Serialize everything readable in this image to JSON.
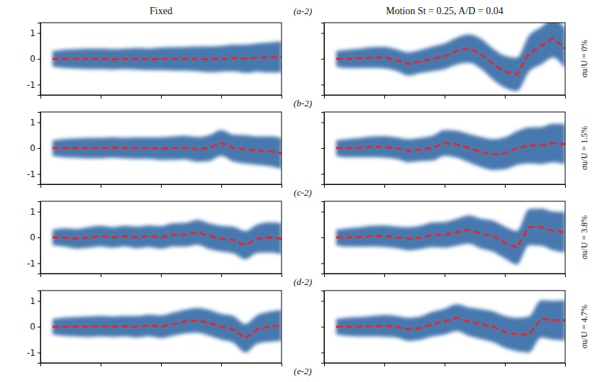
{
  "column_titles": [
    "Fixed",
    "Motion St = 0.25, A/D = 0.04"
  ],
  "panel_labels": [
    "(a-2)",
    "(b-2)",
    "(c-2)",
    "(d-2)",
    "(e-2)"
  ],
  "row_labels": [
    "σu/U = 0%",
    "σu/U = 1.5%",
    "σu/U = 3.8%",
    "σu/U = 4.7%"
  ],
  "chart_data": [
    {
      "type": "line",
      "xlim": [
        0,
        4
      ],
      "ylim": [
        -1.4,
        1.4
      ],
      "xticks": [
        1,
        2,
        3
      ],
      "yticks": [
        -1,
        0,
        1
      ],
      "tick_labels": "y",
      "x": [
        0.2,
        0.4,
        0.6,
        0.8,
        1.0,
        1.2,
        1.4,
        1.6,
        1.8,
        2.0,
        2.2,
        2.4,
        2.6,
        2.8,
        3.0,
        3.2,
        3.4,
        3.6,
        3.8,
        4.0
      ],
      "series": [
        {
          "color": "#e8262a",
          "line_style": "dashed",
          "values": [
            0,
            0,
            0,
            0,
            0,
            -0.02,
            0,
            0,
            -0.02,
            0,
            0,
            0,
            0,
            -0.02,
            0,
            0.03,
            0,
            0.05,
            0.05,
            0.08
          ],
          "wake_halfwidth": [
            0.3,
            0.36,
            0.38,
            0.4,
            0.4,
            0.4,
            0.4,
            0.42,
            0.42,
            0.44,
            0.45,
            0.46,
            0.48,
            0.5,
            0.5,
            0.52,
            0.55,
            0.55,
            0.58,
            0.6
          ]
        }
      ]
    },
    {
      "type": "line",
      "xlim": [
        0,
        4
      ],
      "ylim": [
        -1.4,
        1.4
      ],
      "xticks": [
        1,
        2,
        3
      ],
      "yticks": [
        -1,
        0,
        1
      ],
      "tick_labels": false,
      "x": [
        0.2,
        0.4,
        0.6,
        0.8,
        1.0,
        1.2,
        1.4,
        1.6,
        1.8,
        2.0,
        2.2,
        2.4,
        2.6,
        2.8,
        3.0,
        3.2,
        3.4,
        3.6,
        3.8,
        4.0
      ],
      "series": [
        {
          "color": "#e8262a",
          "line_style": "dashed",
          "values": [
            0,
            0,
            0.02,
            0.05,
            0.05,
            -0.05,
            -0.2,
            -0.1,
            0,
            0.1,
            0.3,
            0.4,
            0.2,
            -0.2,
            -0.5,
            -0.6,
            0.2,
            0.5,
            0.8,
            0.4
          ],
          "wake_halfwidth": [
            0.3,
            0.36,
            0.38,
            0.4,
            0.42,
            0.42,
            0.45,
            0.45,
            0.48,
            0.5,
            0.52,
            0.55,
            0.58,
            0.6,
            0.62,
            0.65,
            0.7,
            0.72,
            0.75,
            0.78
          ]
        }
      ]
    },
    {
      "type": "line",
      "xlim": [
        0,
        4
      ],
      "ylim": [
        -1.4,
        1.4
      ],
      "xticks": [
        1,
        2,
        3
      ],
      "yticks": [
        -1,
        0,
        1
      ],
      "tick_labels": "y",
      "x": [
        0.2,
        0.4,
        0.6,
        0.8,
        1.0,
        1.2,
        1.4,
        1.6,
        1.8,
        2.0,
        2.2,
        2.4,
        2.6,
        2.8,
        3.0,
        3.2,
        3.4,
        3.6,
        3.8,
        4.0
      ],
      "series": [
        {
          "color": "#e8262a",
          "line_style": "dashed",
          "values": [
            0,
            0,
            0,
            0,
            0,
            0.02,
            0,
            0,
            0,
            -0.02,
            0,
            0.02,
            -0.05,
            0,
            0.2,
            0,
            -0.05,
            -0.1,
            -0.12,
            -0.2
          ],
          "wake_halfwidth": [
            0.3,
            0.36,
            0.38,
            0.4,
            0.4,
            0.4,
            0.4,
            0.42,
            0.42,
            0.44,
            0.45,
            0.46,
            0.48,
            0.5,
            0.5,
            0.52,
            0.55,
            0.55,
            0.58,
            0.6
          ]
        }
      ]
    },
    {
      "type": "line",
      "xlim": [
        0,
        4
      ],
      "ylim": [
        -1.4,
        1.4
      ],
      "xticks": [
        1,
        2,
        3
      ],
      "yticks": [
        -1,
        0,
        1
      ],
      "tick_labels": false,
      "x": [
        0.2,
        0.4,
        0.6,
        0.8,
        1.0,
        1.2,
        1.4,
        1.6,
        1.8,
        2.0,
        2.2,
        2.4,
        2.6,
        2.8,
        3.0,
        3.2,
        3.4,
        3.6,
        3.8,
        4.0
      ],
      "series": [
        {
          "color": "#e8262a",
          "line_style": "dashed",
          "values": [
            0,
            0,
            0.02,
            0.05,
            0.05,
            0,
            -0.1,
            -0.05,
            0,
            0.2,
            0.15,
            0,
            -0.15,
            -0.25,
            -0.2,
            0,
            0.1,
            0.1,
            0.2,
            0.15
          ],
          "wake_halfwidth": [
            0.3,
            0.36,
            0.38,
            0.4,
            0.42,
            0.42,
            0.45,
            0.45,
            0.48,
            0.5,
            0.52,
            0.55,
            0.58,
            0.6,
            0.62,
            0.65,
            0.7,
            0.72,
            0.75,
            0.78
          ]
        }
      ]
    },
    {
      "type": "line",
      "xlim": [
        0,
        4
      ],
      "ylim": [
        -1.4,
        1.4
      ],
      "xticks": [
        1,
        2,
        3
      ],
      "yticks": [
        -1,
        0,
        1
      ],
      "tick_labels": "y",
      "x": [
        0.2,
        0.4,
        0.6,
        0.8,
        1.0,
        1.2,
        1.4,
        1.6,
        1.8,
        2.0,
        2.2,
        2.4,
        2.6,
        2.8,
        3.0,
        3.2,
        3.4,
        3.6,
        3.8,
        4.0
      ],
      "series": [
        {
          "color": "#e8262a",
          "line_style": "dashed",
          "values": [
            0,
            0,
            -0.05,
            0,
            0.05,
            0,
            0.05,
            0,
            0.05,
            0,
            0.1,
            0.1,
            0.2,
            0.05,
            -0.05,
            -0.1,
            -0.3,
            -0.05,
            0,
            -0.05
          ],
          "wake_halfwidth": [
            0.3,
            0.36,
            0.38,
            0.4,
            0.4,
            0.4,
            0.4,
            0.42,
            0.42,
            0.44,
            0.45,
            0.46,
            0.48,
            0.5,
            0.5,
            0.52,
            0.55,
            0.55,
            0.58,
            0.6
          ]
        }
      ]
    },
    {
      "type": "line",
      "xlim": [
        0,
        4
      ],
      "ylim": [
        -1.4,
        1.4
      ],
      "xticks": [
        1,
        2,
        3
      ],
      "yticks": [
        -1,
        0,
        1
      ],
      "tick_labels": false,
      "x": [
        0.2,
        0.4,
        0.6,
        0.8,
        1.0,
        1.2,
        1.4,
        1.6,
        1.8,
        2.0,
        2.2,
        2.4,
        2.6,
        2.8,
        3.0,
        3.2,
        3.4,
        3.6,
        3.8,
        4.0
      ],
      "series": [
        {
          "color": "#e8262a",
          "line_style": "dashed",
          "values": [
            0,
            0,
            0.02,
            0.05,
            0.05,
            0,
            -0.05,
            0,
            0.1,
            0.1,
            0.2,
            0.3,
            0.15,
            0.05,
            -0.2,
            -0.4,
            0.4,
            0.4,
            0.25,
            0.2
          ],
          "wake_halfwidth": [
            0.3,
            0.36,
            0.38,
            0.4,
            0.42,
            0.42,
            0.45,
            0.45,
            0.48,
            0.5,
            0.52,
            0.55,
            0.58,
            0.6,
            0.62,
            0.65,
            0.7,
            0.72,
            0.75,
            0.78
          ]
        }
      ]
    },
    {
      "type": "line",
      "xlim": [
        0,
        4
      ],
      "ylim": [
        -1.4,
        1.4
      ],
      "xticks": [
        1,
        2,
        3
      ],
      "yticks": [
        -1,
        0,
        1
      ],
      "tick_labels": "y",
      "x": [
        0.2,
        0.4,
        0.6,
        0.8,
        1.0,
        1.2,
        1.4,
        1.6,
        1.8,
        2.0,
        2.2,
        2.4,
        2.6,
        2.8,
        3.0,
        3.2,
        3.4,
        3.6,
        3.8,
        4.0
      ],
      "series": [
        {
          "color": "#e8262a",
          "line_style": "dashed",
          "values": [
            0,
            0,
            0,
            0,
            0.02,
            0,
            0.02,
            0,
            0.05,
            0,
            0.1,
            0.2,
            0.25,
            0.15,
            0,
            -0.1,
            -0.45,
            -0.1,
            0,
            0.05
          ],
          "wake_halfwidth": [
            0.3,
            0.36,
            0.38,
            0.4,
            0.4,
            0.4,
            0.4,
            0.42,
            0.42,
            0.44,
            0.45,
            0.46,
            0.48,
            0.5,
            0.5,
            0.52,
            0.55,
            0.55,
            0.58,
            0.6
          ]
        }
      ]
    },
    {
      "type": "line",
      "xlim": [
        0,
        4
      ],
      "ylim": [
        -1.4,
        1.4
      ],
      "xticks": [
        1,
        2,
        3
      ],
      "yticks": [
        -1,
        0,
        1
      ],
      "tick_labels": false,
      "x": [
        0.2,
        0.4,
        0.6,
        0.8,
        1.0,
        1.2,
        1.4,
        1.6,
        1.8,
        2.0,
        2.2,
        2.4,
        2.6,
        2.8,
        3.0,
        3.2,
        3.4,
        3.6,
        3.8,
        4.0
      ],
      "series": [
        {
          "color": "#e8262a",
          "line_style": "dashed",
          "values": [
            0,
            0,
            0,
            0.02,
            0.03,
            0,
            -0.1,
            -0.05,
            0.1,
            0.2,
            0.35,
            0.2,
            0.1,
            0,
            -0.2,
            -0.3,
            -0.3,
            0.3,
            0.25,
            0.25
          ],
          "wake_halfwidth": [
            0.3,
            0.36,
            0.38,
            0.4,
            0.42,
            0.42,
            0.45,
            0.45,
            0.48,
            0.5,
            0.52,
            0.55,
            0.58,
            0.6,
            0.62,
            0.65,
            0.7,
            0.72,
            0.75,
            0.78
          ]
        }
      ]
    }
  ]
}
